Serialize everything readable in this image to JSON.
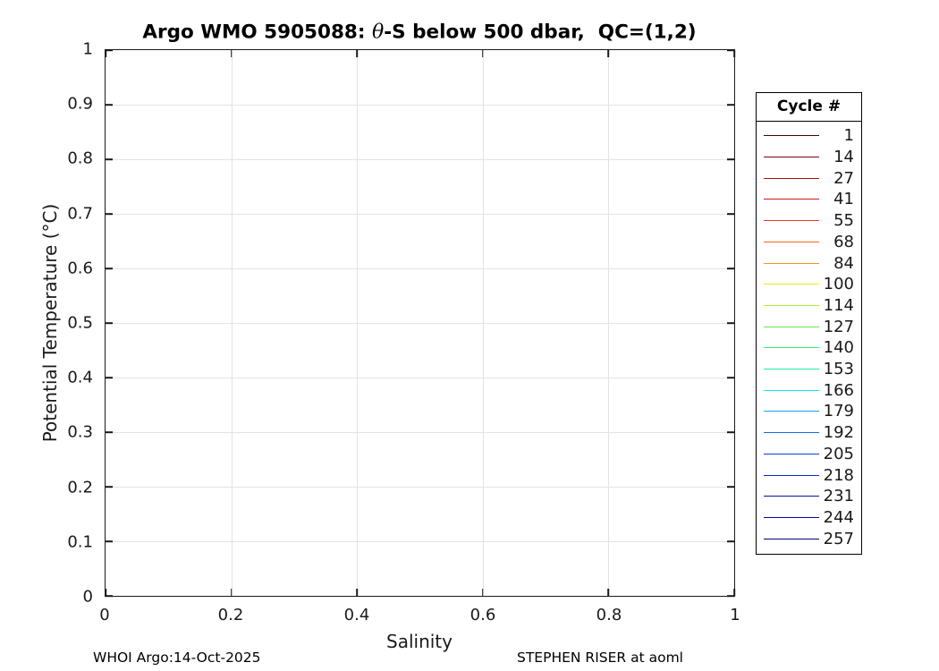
{
  "figure": {
    "title_prefix": "Argo WMO 5905088: ",
    "title_theta": "θ",
    "title_suffix": "-S below 500 dbar,  QC=(1,2)",
    "footer_left": "WHOI Argo:14-Oct-2025",
    "footer_right": "STEPHEN RISER at aoml"
  },
  "style_colors": {
    "axis": "#1a1a1a",
    "grid": "#e3e3e3",
    "background": "#ffffff"
  },
  "chart_data": {
    "type": "line",
    "title": "Argo WMO 5905088: θ-S below 500 dbar,  QC=(1,2)",
    "xlabel": "Salinity",
    "ylabel": "Potential Temperature (°C)",
    "xlim": [
      0,
      1
    ],
    "ylim": [
      0,
      1
    ],
    "grid": true,
    "x_ticks": [
      {
        "pos": 0.0,
        "label": "0"
      },
      {
        "pos": 0.2,
        "label": "0.2"
      },
      {
        "pos": 0.4,
        "label": "0.4"
      },
      {
        "pos": 0.6,
        "label": "0.6"
      },
      {
        "pos": 0.8,
        "label": "0.8"
      },
      {
        "pos": 1.0,
        "label": "1"
      }
    ],
    "y_ticks": [
      {
        "pos": 0.0,
        "label": "0"
      },
      {
        "pos": 0.1,
        "label": "0.1"
      },
      {
        "pos": 0.2,
        "label": "0.2"
      },
      {
        "pos": 0.3,
        "label": "0.3"
      },
      {
        "pos": 0.4,
        "label": "0.4"
      },
      {
        "pos": 0.5,
        "label": "0.5"
      },
      {
        "pos": 0.6,
        "label": "0.6"
      },
      {
        "pos": 0.7,
        "label": "0.7"
      },
      {
        "pos": 0.8,
        "label": "0.8"
      },
      {
        "pos": 0.9,
        "label": "0.9"
      },
      {
        "pos": 1.0,
        "label": "1"
      }
    ],
    "legend_title": "Cycle #",
    "legend_position": "outside-right",
    "series": [
      {
        "name": "1",
        "color": "#450505",
        "points": []
      },
      {
        "name": "14",
        "color": "#7A0707",
        "points": []
      },
      {
        "name": "27",
        "color": "#B00D0D",
        "points": []
      },
      {
        "name": "41",
        "color": "#DB1414",
        "points": []
      },
      {
        "name": "55",
        "color": "#EE3A1E",
        "points": []
      },
      {
        "name": "68",
        "color": "#EF6A14",
        "points": []
      },
      {
        "name": "84",
        "color": "#F2991D",
        "points": []
      },
      {
        "name": "100",
        "color": "#EFE41A",
        "points": []
      },
      {
        "name": "114",
        "color": "#A8F02A",
        "points": []
      },
      {
        "name": "127",
        "color": "#5FEE48",
        "points": []
      },
      {
        "name": "140",
        "color": "#38F06E",
        "points": []
      },
      {
        "name": "153",
        "color": "#26EEA5",
        "points": []
      },
      {
        "name": "166",
        "color": "#15E8EA",
        "points": []
      },
      {
        "name": "179",
        "color": "#1EA0EE",
        "points": []
      },
      {
        "name": "192",
        "color": "#1668E2",
        "points": []
      },
      {
        "name": "205",
        "color": "#0D3FD4",
        "points": []
      },
      {
        "name": "218",
        "color": "#0A28C4",
        "points": []
      },
      {
        "name": "231",
        "color": "#0715A8",
        "points": []
      },
      {
        "name": "244",
        "color": "#040C96",
        "points": []
      },
      {
        "name": "257",
        "color": "#020670",
        "points": []
      }
    ]
  }
}
